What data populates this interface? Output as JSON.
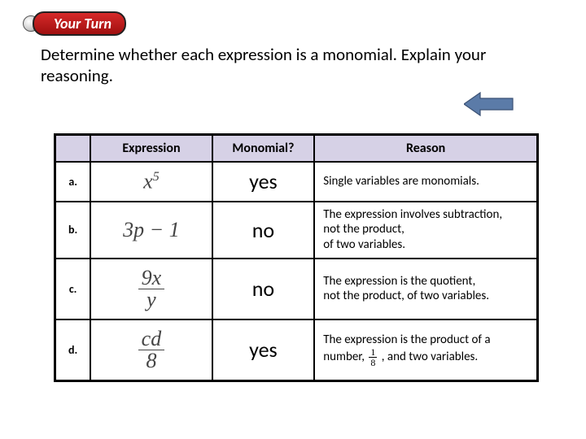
{
  "badge": {
    "text": "Your Turn"
  },
  "prompt": "Determine whether each expression is a monomial.  Explain your reasoning.",
  "arrow": {
    "fill": "#5b7ba8",
    "stroke": "#3b5174"
  },
  "table": {
    "headers": {
      "expression": "Expression",
      "monomial": "Monomial?",
      "reason": "Reason"
    },
    "rows": [
      {
        "label": "a.",
        "expr_html": "<span style=\"font-style:italic\">x</span><sup style=\"font-size:16px\">5</sup>",
        "monomial": "yes",
        "reason_html": "Single variables are monomials."
      },
      {
        "label": "b.",
        "expr_html": "3<span style=\"font-style:italic\">p</span> − 1",
        "monomial": "no",
        "reason_html": "The expression involves subtraction,<br>not the product,<br>of two variables."
      },
      {
        "label": "c.",
        "expr_html": "<span class=\"frac\"><span class=\"num\">9<span style=\"font-style:italic\">x</span></span><span class=\"den\"><span style=\"font-style:italic\">y</span></span></span>",
        "monomial": "no",
        "reason_html": "The expression is the quotient,<br>not the product, of two variables."
      },
      {
        "label": "d.",
        "expr_html": "<span class=\"frac\"><span class=\"num\"><span style=\"font-style:italic\">cd</span></span><span class=\"den\">8</span></span>",
        "monomial": "yes",
        "reason_html": "The expression is the product of a<br>number, <span class=\"sfrac\"><span class=\"num\">1</span><span class=\"den\">8</span></span> , and two variables."
      }
    ],
    "header_bg": "#d6d1e6",
    "border_color": "#000000"
  }
}
